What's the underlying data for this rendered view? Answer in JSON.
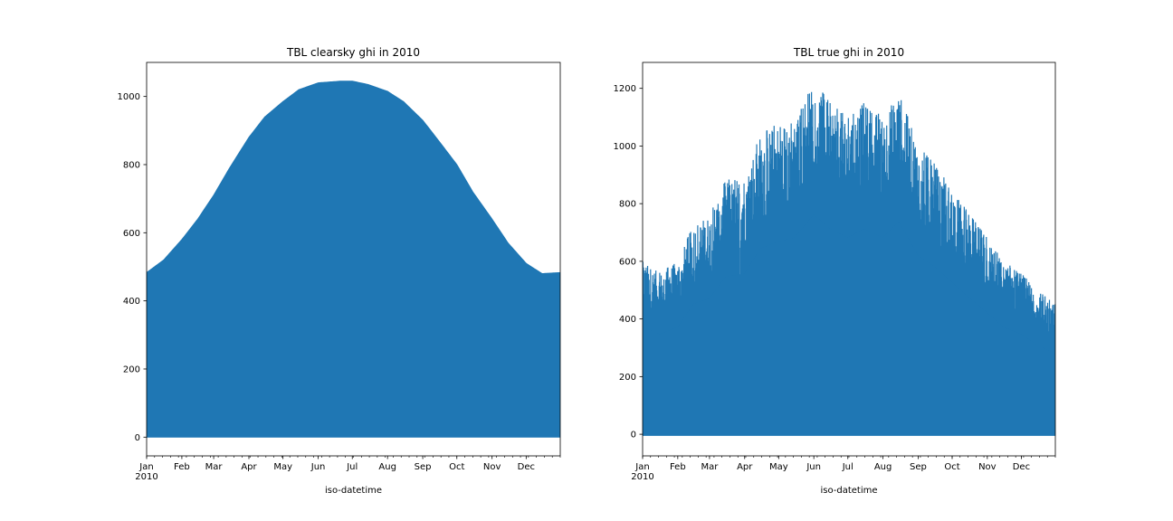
{
  "chart_data": [
    {
      "type": "area",
      "title": "TBL clearsky ghi in 2010",
      "xlabel": "iso-datetime",
      "ylabel": "",
      "series_color": "#1f77b4",
      "grid": false,
      "legend": "none",
      "xlim": [
        "2010-01-01",
        "2010-12-31"
      ],
      "ylim": [
        -55,
        1100
      ],
      "yticks": [
        0,
        200,
        400,
        600,
        800,
        1000
      ],
      "xticks": [
        {
          "date": "2010-01-01",
          "label": "Jan",
          "sublabel": "2010"
        },
        {
          "date": "2010-02-01",
          "label": "Feb"
        },
        {
          "date": "2010-03-01",
          "label": "Mar"
        },
        {
          "date": "2010-04-01",
          "label": "Apr"
        },
        {
          "date": "2010-05-01",
          "label": "May"
        },
        {
          "date": "2010-06-01",
          "label": "Jun"
        },
        {
          "date": "2010-07-01",
          "label": "Jul"
        },
        {
          "date": "2010-08-01",
          "label": "Aug"
        },
        {
          "date": "2010-09-01",
          "label": "Sep"
        },
        {
          "date": "2010-10-01",
          "label": "Oct"
        },
        {
          "date": "2010-11-01",
          "label": "Nov"
        },
        {
          "date": "2010-12-01",
          "label": "Dec"
        }
      ],
      "upper_envelope": [
        {
          "date": "2010-01-01",
          "value": 483
        },
        {
          "date": "2010-01-16",
          "value": 520
        },
        {
          "date": "2010-02-01",
          "value": 580
        },
        {
          "date": "2010-02-15",
          "value": 640
        },
        {
          "date": "2010-03-01",
          "value": 710
        },
        {
          "date": "2010-03-15",
          "value": 790
        },
        {
          "date": "2010-04-01",
          "value": 880
        },
        {
          "date": "2010-04-15",
          "value": 940
        },
        {
          "date": "2010-05-01",
          "value": 985
        },
        {
          "date": "2010-05-15",
          "value": 1020
        },
        {
          "date": "2010-06-01",
          "value": 1040
        },
        {
          "date": "2010-06-21",
          "value": 1045
        },
        {
          "date": "2010-07-01",
          "value": 1045
        },
        {
          "date": "2010-07-15",
          "value": 1035
        },
        {
          "date": "2010-08-01",
          "value": 1015
        },
        {
          "date": "2010-08-15",
          "value": 985
        },
        {
          "date": "2010-09-01",
          "value": 930
        },
        {
          "date": "2010-09-15",
          "value": 870
        },
        {
          "date": "2010-10-01",
          "value": 800
        },
        {
          "date": "2010-10-15",
          "value": 720
        },
        {
          "date": "2010-11-01",
          "value": 640
        },
        {
          "date": "2010-11-15",
          "value": 570
        },
        {
          "date": "2010-12-01",
          "value": 510
        },
        {
          "date": "2010-12-15",
          "value": 480
        },
        {
          "date": "2010-12-31",
          "value": 483
        }
      ],
      "lower_envelope": 0
    },
    {
      "type": "line",
      "title": "TBL true ghi in 2010",
      "xlabel": "iso-datetime",
      "ylabel": "",
      "series_color": "#1f77b4",
      "grid": false,
      "legend": "none",
      "xlim": [
        "2010-01-01",
        "2010-12-31"
      ],
      "ylim": [
        -75,
        1290
      ],
      "yticks": [
        0,
        200,
        400,
        600,
        800,
        1000,
        1200
      ],
      "xticks": [
        {
          "date": "2010-01-01",
          "label": "Jan",
          "sublabel": "2010"
        },
        {
          "date": "2010-02-01",
          "label": "Feb"
        },
        {
          "date": "2010-03-01",
          "label": "Mar"
        },
        {
          "date": "2010-04-01",
          "label": "Apr"
        },
        {
          "date": "2010-05-01",
          "label": "May"
        },
        {
          "date": "2010-06-01",
          "label": "Jun"
        },
        {
          "date": "2010-07-01",
          "label": "Jul"
        },
        {
          "date": "2010-08-01",
          "label": "Aug"
        },
        {
          "date": "2010-09-01",
          "label": "Sep"
        },
        {
          "date": "2010-10-01",
          "label": "Oct"
        },
        {
          "date": "2010-11-01",
          "label": "Nov"
        },
        {
          "date": "2010-12-01",
          "label": "Dec"
        }
      ],
      "upper_envelope": [
        {
          "date": "2010-01-01",
          "value": 600
        },
        {
          "date": "2010-01-16",
          "value": 560
        },
        {
          "date": "2010-02-01",
          "value": 600
        },
        {
          "date": "2010-02-15",
          "value": 730
        },
        {
          "date": "2010-03-01",
          "value": 760
        },
        {
          "date": "2010-03-15",
          "value": 880
        },
        {
          "date": "2010-04-01",
          "value": 900
        },
        {
          "date": "2010-04-15",
          "value": 1040
        },
        {
          "date": "2010-05-01",
          "value": 1080
        },
        {
          "date": "2010-05-15",
          "value": 1100
        },
        {
          "date": "2010-06-01",
          "value": 1230
        },
        {
          "date": "2010-06-15",
          "value": 1150
        },
        {
          "date": "2010-07-01",
          "value": 1100
        },
        {
          "date": "2010-07-15",
          "value": 1150
        },
        {
          "date": "2010-08-01",
          "value": 1100
        },
        {
          "date": "2010-08-15",
          "value": 1190
        },
        {
          "date": "2010-09-01",
          "value": 1000
        },
        {
          "date": "2010-09-15",
          "value": 940
        },
        {
          "date": "2010-10-01",
          "value": 850
        },
        {
          "date": "2010-10-15",
          "value": 770
        },
        {
          "date": "2010-11-01",
          "value": 680
        },
        {
          "date": "2010-11-15",
          "value": 600
        },
        {
          "date": "2010-12-01",
          "value": 560
        },
        {
          "date": "2010-12-15",
          "value": 500
        },
        {
          "date": "2010-12-31",
          "value": 450
        }
      ],
      "lower_envelope": -5
    }
  ]
}
